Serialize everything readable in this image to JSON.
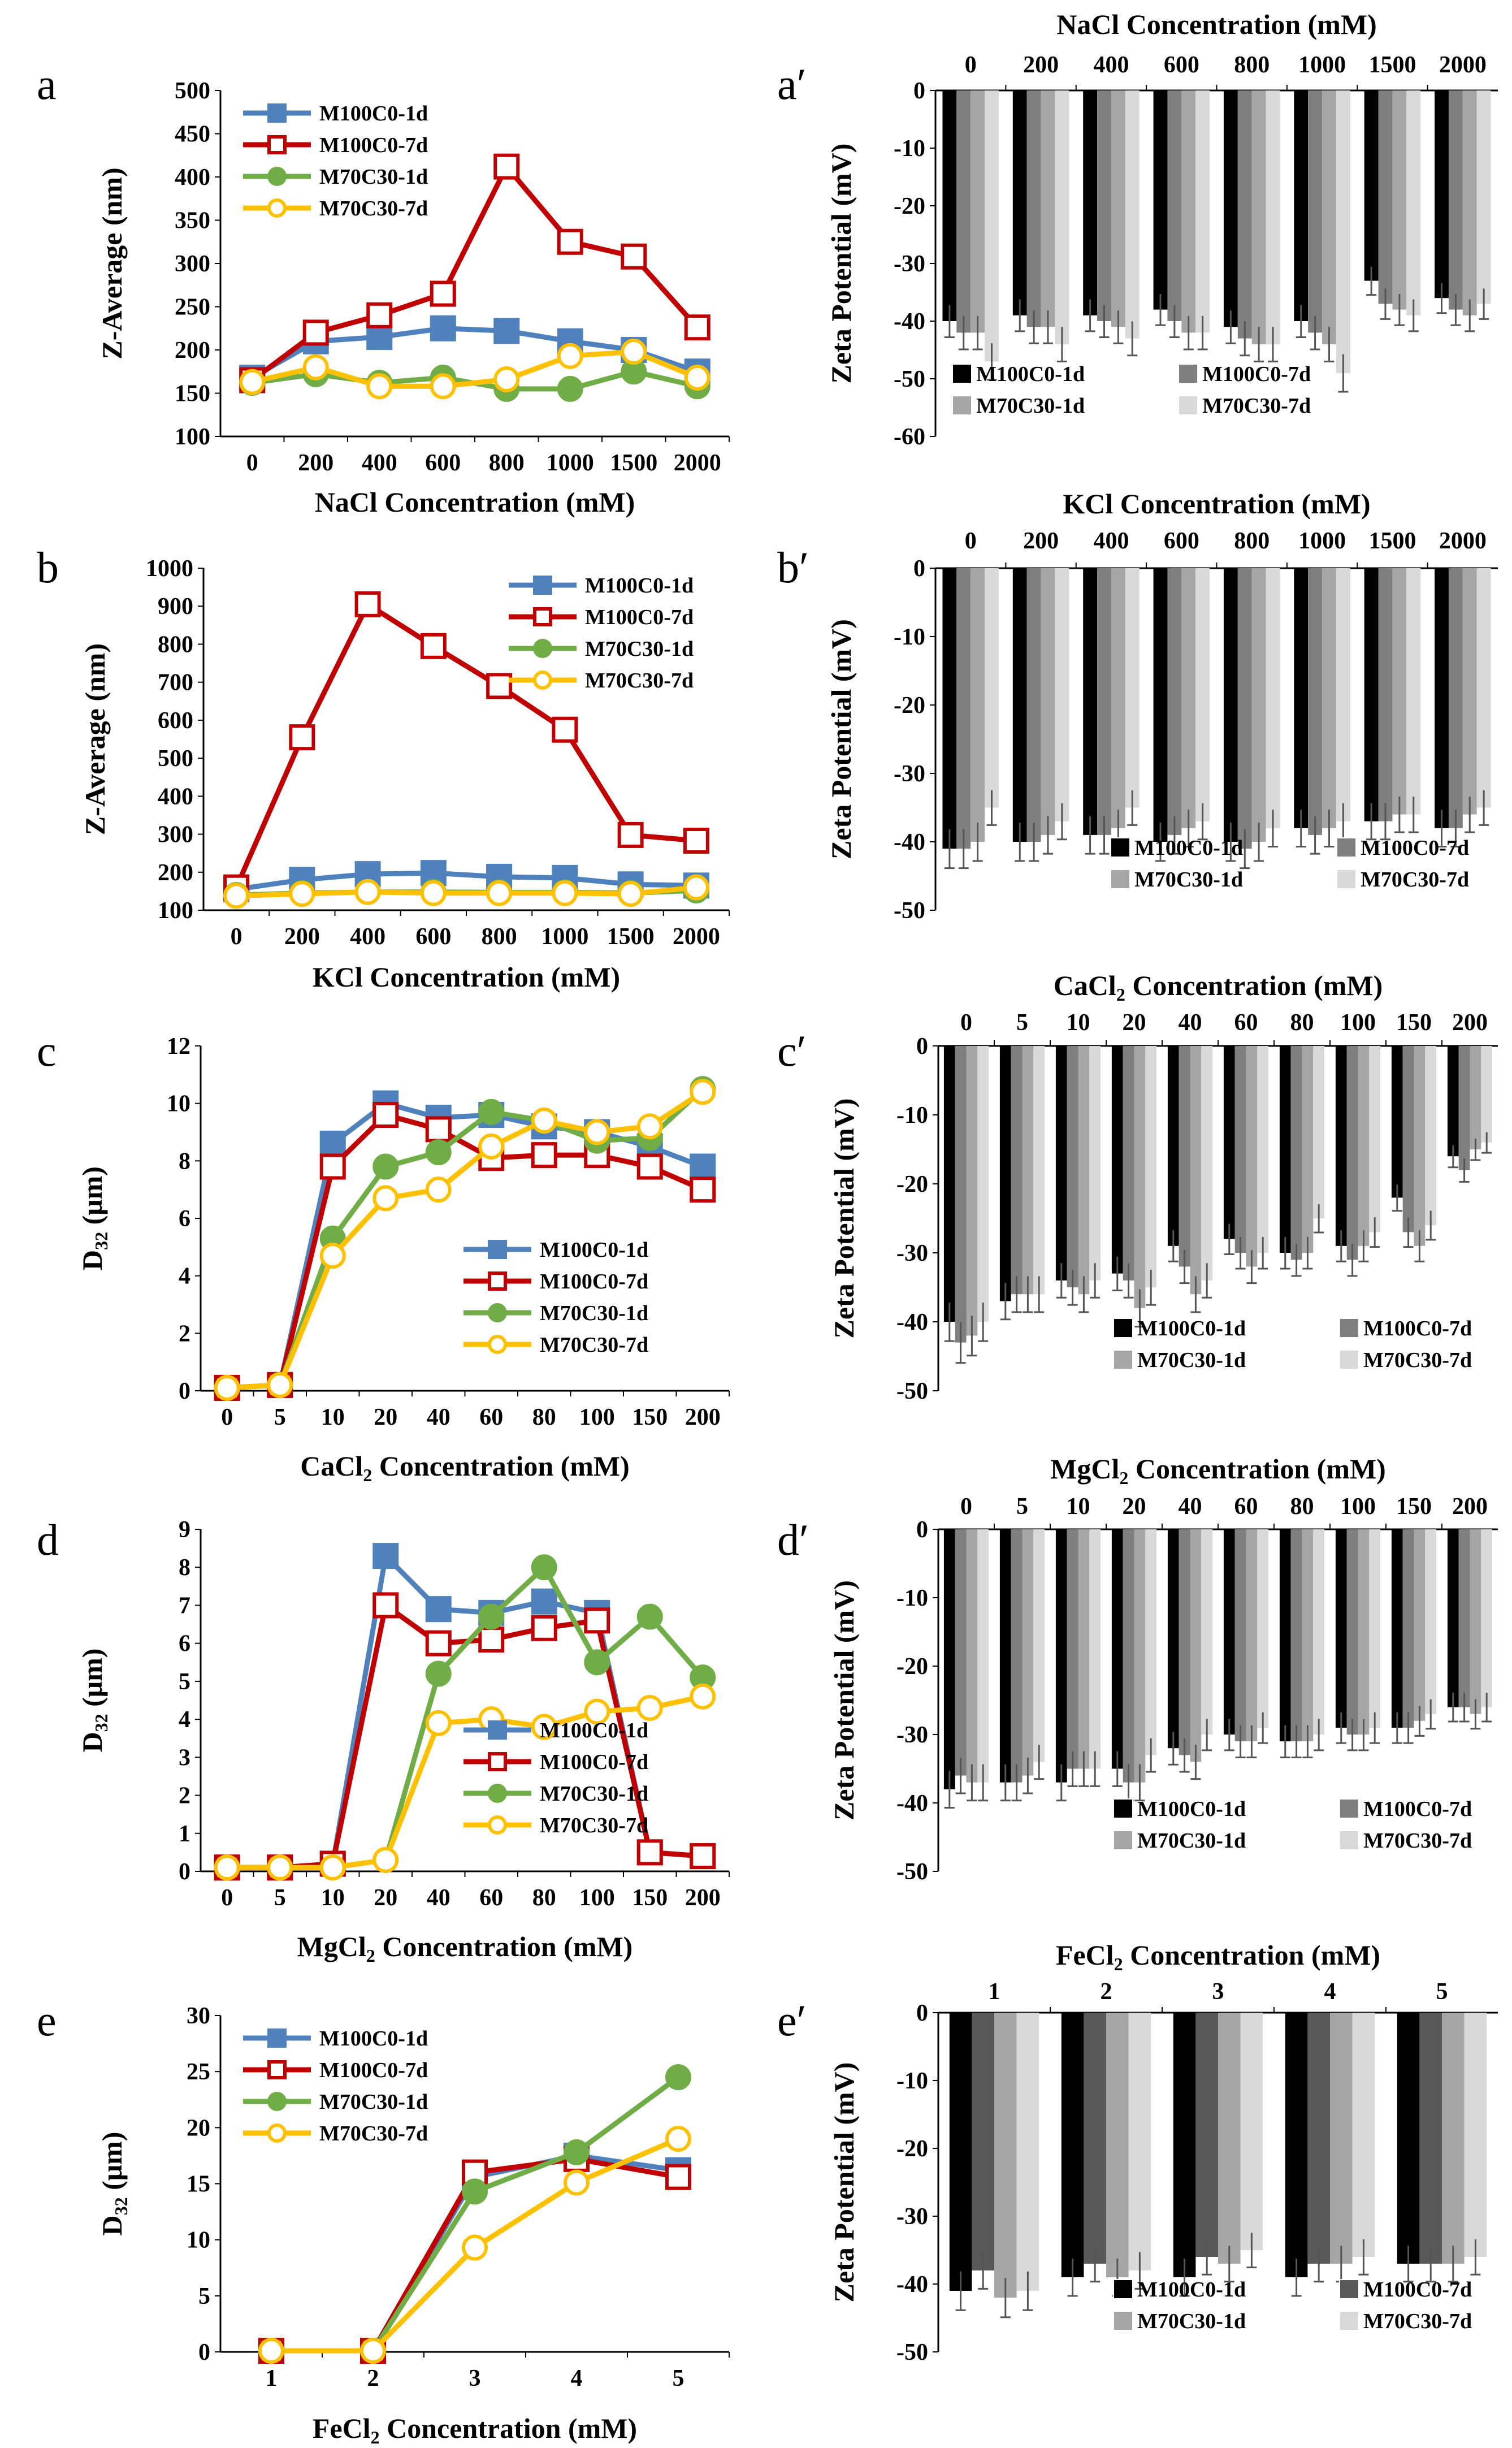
{
  "figure": {
    "panels": [
      "a",
      "a′",
      "b",
      "b′",
      "c",
      "c′",
      "d",
      "d′",
      "e",
      "e′"
    ]
  },
  "chart_data": [
    {
      "id": "a",
      "type": "line",
      "label": "a",
      "categories": [
        "0",
        "200",
        "400",
        "600",
        "800",
        "1000",
        "1500",
        "2000"
      ],
      "xlabel": "NaCl Concentration (mM)",
      "ylabel": "Z-Average (nm)",
      "ylim": [
        100,
        500
      ],
      "ystep": 50,
      "legend": "top-left",
      "series": [
        {
          "name": "M100C0-1d",
          "color": "#4f81bd",
          "marker": "square",
          "filled": true,
          "values": [
            168,
            210,
            215,
            225,
            222,
            210,
            200,
            175
          ]
        },
        {
          "name": "M100C0-7d",
          "color": "#c00000",
          "marker": "square",
          "filled": false,
          "values": [
            165,
            220,
            240,
            265,
            412,
            325,
            308,
            226
          ]
        },
        {
          "name": "M70C30-1d",
          "color": "#70ad47",
          "marker": "circle",
          "filled": true,
          "values": [
            162,
            172,
            162,
            168,
            155,
            155,
            175,
            158
          ]
        },
        {
          "name": "M70C30-7d",
          "color": "#ffc000",
          "marker": "circle",
          "filled": false,
          "values": [
            163,
            180,
            158,
            158,
            166,
            193,
            198,
            168
          ]
        }
      ]
    },
    {
      "id": "a2",
      "type": "bar",
      "label": "a′",
      "title": "NaCl Concentration (mM)",
      "categories": [
        "0",
        "200",
        "400",
        "600",
        "800",
        "1000",
        "1500",
        "2000"
      ],
      "ylabel": "Zeta Potential (mV)",
      "ylim": [
        -60,
        0
      ],
      "ystep": 10,
      "legend": "bottom-left",
      "series": [
        {
          "name": "M100C0-1d",
          "color": "#000000",
          "values": [
            -40,
            -39,
            -39,
            -38,
            -41,
            -40,
            -33,
            -36
          ]
        },
        {
          "name": "M100C0-7d",
          "color": "#7f7f7f",
          "values": [
            -42,
            -41,
            -40,
            -40,
            -43,
            -42,
            -37,
            -38
          ]
        },
        {
          "name": "M70C30-1d",
          "color": "#a6a6a6",
          "values": [
            -42,
            -41,
            -41,
            -42,
            -44,
            -44,
            -38,
            -39
          ]
        },
        {
          "name": "M70C30-7d",
          "color": "#d9d9d9",
          "values": [
            -47,
            -44,
            -43,
            -42,
            -44,
            -49,
            -39,
            -37
          ]
        }
      ]
    },
    {
      "id": "b",
      "type": "line",
      "label": "b",
      "categories": [
        "0",
        "200",
        "400",
        "600",
        "800",
        "1000",
        "1500",
        "2000"
      ],
      "xlabel": "KCl Concentration (mM)",
      "ylabel": "Z-Average (nm)",
      "ylim": [
        100,
        1000
      ],
      "ystep": 100,
      "legend": "top-right",
      "series": [
        {
          "name": "M100C0-1d",
          "color": "#4f81bd",
          "marker": "square",
          "filled": true,
          "values": [
            155,
            180,
            195,
            198,
            188,
            185,
            168,
            165
          ]
        },
        {
          "name": "M100C0-7d",
          "color": "#c00000",
          "marker": "square",
          "filled": false,
          "values": [
            160,
            555,
            905,
            795,
            690,
            575,
            298,
            283
          ]
        },
        {
          "name": "M70C30-1d",
          "color": "#70ad47",
          "marker": "circle",
          "filled": true,
          "values": [
            140,
            145,
            148,
            148,
            147,
            147,
            145,
            152
          ]
        },
        {
          "name": "M70C30-7d",
          "color": "#ffc000",
          "marker": "circle",
          "filled": false,
          "values": [
            138,
            143,
            148,
            145,
            145,
            145,
            143,
            160
          ]
        }
      ]
    },
    {
      "id": "b2",
      "type": "bar",
      "label": "b′",
      "title": "KCl Concentration (mM)",
      "categories": [
        "0",
        "200",
        "400",
        "600",
        "800",
        "1000",
        "1500",
        "2000"
      ],
      "ylabel": "Zeta Potential (mV)",
      "ylim": [
        -50,
        0
      ],
      "ystep": 10,
      "legend": "bottom-right",
      "series": [
        {
          "name": "M100C0-1d",
          "color": "#000000",
          "values": [
            -41,
            -40,
            -39,
            -40,
            -40,
            -38,
            -37,
            -38
          ]
        },
        {
          "name": "M100C0-7d",
          "color": "#7f7f7f",
          "values": [
            -41,
            -40,
            -39,
            -39,
            -41,
            -39,
            -37,
            -38
          ]
        },
        {
          "name": "M70C30-1d",
          "color": "#a6a6a6",
          "values": [
            -40,
            -39,
            -38,
            -38,
            -40,
            -38,
            -36,
            -36
          ]
        },
        {
          "name": "M70C30-7d",
          "color": "#d9d9d9",
          "values": [
            -35,
            -37,
            -35,
            -37,
            -38,
            -37,
            -36,
            -35
          ]
        }
      ]
    },
    {
      "id": "c",
      "type": "line",
      "label": "c",
      "categories": [
        "0",
        "5",
        "10",
        "20",
        "40",
        "60",
        "80",
        "100",
        "150",
        "200"
      ],
      "xlabel": "CaCl",
      "xlabel_sub": "2",
      "xlabel_rest": " Concentration (mM)",
      "ylabel": "D",
      "ylabel_sub": "32",
      "ylabel_rest": " (μm)",
      "ylim": [
        0,
        12
      ],
      "ystep": 2,
      "legend": "bottom-right",
      "series": [
        {
          "name": "M100C0-1d",
          "color": "#4f81bd",
          "marker": "square",
          "filled": true,
          "values": [
            0.1,
            0.2,
            8.6,
            10.0,
            9.5,
            9.6,
            9.2,
            9.0,
            8.5,
            7.8
          ]
        },
        {
          "name": "M100C0-7d",
          "color": "#c00000",
          "marker": "square",
          "filled": false,
          "values": [
            0.1,
            0.2,
            7.8,
            9.6,
            9.1,
            8.1,
            8.2,
            8.2,
            7.8,
            7.0
          ]
        },
        {
          "name": "M70C30-1d",
          "color": "#70ad47",
          "marker": "circle",
          "filled": true,
          "values": [
            0.1,
            0.2,
            5.3,
            7.8,
            8.3,
            9.7,
            9.4,
            8.7,
            8.8,
            10.5
          ]
        },
        {
          "name": "M70C30-7d",
          "color": "#ffc000",
          "marker": "circle",
          "filled": false,
          "values": [
            0.1,
            0.2,
            4.7,
            6.7,
            7.0,
            8.5,
            9.4,
            9.0,
            9.2,
            10.4
          ]
        }
      ]
    },
    {
      "id": "c2",
      "type": "bar",
      "label": "c′",
      "title": "CaCl",
      "title_sub": "2",
      "title_rest": " Concentration (mM)",
      "categories": [
        "0",
        "5",
        "10",
        "20",
        "40",
        "60",
        "80",
        "100",
        "150",
        "200"
      ],
      "ylabel": "Zeta Potential (mV)",
      "ylim": [
        -50,
        0
      ],
      "ystep": 10,
      "legend": "bottom-right",
      "series": [
        {
          "name": "M100C0-1d",
          "color": "#000000",
          "values": [
            -40,
            -37,
            -34,
            -33,
            -29,
            -28,
            -30,
            -29,
            -22,
            -16
          ]
        },
        {
          "name": "M100C0-7d",
          "color": "#7f7f7f",
          "values": [
            -43,
            -36,
            -35,
            -34,
            -32,
            -30,
            -31,
            -31,
            -27,
            -18
          ]
        },
        {
          "name": "M70C30-1d",
          "color": "#a6a6a6",
          "values": [
            -42,
            -36,
            -36,
            -38,
            -36,
            -32,
            -30,
            -29,
            -29,
            -15
          ]
        },
        {
          "name": "M70C30-7d",
          "color": "#d9d9d9",
          "values": [
            -40,
            -36,
            -34,
            -35,
            -34,
            -30,
            -25,
            -27,
            -26,
            -14
          ]
        }
      ]
    },
    {
      "id": "d",
      "type": "line",
      "label": "d",
      "categories": [
        "0",
        "5",
        "10",
        "20",
        "40",
        "60",
        "80",
        "100",
        "150",
        "200"
      ],
      "xlabel": "MgCl",
      "xlabel_sub": "2",
      "xlabel_rest": " Concentration (mM)",
      "ylabel": "D",
      "ylabel_sub": "32",
      "ylabel_rest": " (μm)",
      "ylim": [
        0,
        9
      ],
      "ystep": 1,
      "legend": "bottom-right",
      "series": [
        {
          "name": "M100C0-1d",
          "color": "#4f81bd",
          "marker": "square",
          "filled": true,
          "values": [
            0.1,
            0.1,
            0.2,
            8.3,
            6.9,
            6.8,
            7.1,
            6.8,
            0.5,
            0.4
          ]
        },
        {
          "name": "M100C0-7d",
          "color": "#c00000",
          "marker": "square",
          "filled": false,
          "values": [
            0.1,
            0.1,
            0.2,
            7.0,
            6.0,
            6.1,
            6.4,
            6.6,
            0.5,
            0.4
          ]
        },
        {
          "name": "M70C30-1d",
          "color": "#70ad47",
          "marker": "circle",
          "filled": true,
          "values": [
            0.1,
            0.1,
            0.1,
            0.3,
            5.2,
            6.7,
            8.0,
            5.5,
            6.7,
            5.1
          ]
        },
        {
          "name": "M70C30-7d",
          "color": "#ffc000",
          "marker": "circle",
          "filled": false,
          "values": [
            0.1,
            0.1,
            0.1,
            0.3,
            3.9,
            4.0,
            3.8,
            4.2,
            4.3,
            4.6
          ]
        }
      ]
    },
    {
      "id": "d2",
      "type": "bar",
      "label": "d′",
      "title": "MgCl",
      "title_sub": "2",
      "title_rest": " Concentration (mM)",
      "categories": [
        "0",
        "5",
        "10",
        "20",
        "40",
        "60",
        "80",
        "100",
        "150",
        "200"
      ],
      "ylabel": "Zeta Potential (mV)",
      "ylim": [
        -50,
        0
      ],
      "ystep": 10,
      "legend": "bottom-right",
      "series": [
        {
          "name": "M100C0-1d",
          "color": "#000000",
          "values": [
            -38,
            -37,
            -37,
            -35,
            -32,
            -30,
            -31,
            -29,
            -29,
            -26
          ]
        },
        {
          "name": "M100C0-7d",
          "color": "#7f7f7f",
          "values": [
            -36,
            -37,
            -35,
            -37,
            -33,
            -31,
            -31,
            -30,
            -29,
            -26
          ]
        },
        {
          "name": "M70C30-1d",
          "color": "#a6a6a6",
          "values": [
            -37,
            -36,
            -35,
            -37,
            -34,
            -31,
            -31,
            -30,
            -28,
            -27
          ]
        },
        {
          "name": "M70C30-7d",
          "color": "#d9d9d9",
          "values": [
            -37,
            -34,
            -35,
            -33,
            -30,
            -29,
            -30,
            -29,
            -27,
            -26
          ]
        }
      ]
    },
    {
      "id": "e",
      "type": "line",
      "label": "e",
      "categories": [
        "1",
        "2",
        "3",
        "4",
        "5"
      ],
      "xlabel": "FeCl",
      "xlabel_sub": "2",
      "xlabel_rest": " Concentration (mM)",
      "ylabel": "D",
      "ylabel_sub": "32",
      "ylabel_rest": " (μm)",
      "ylim": [
        0,
        30
      ],
      "ystep": 5,
      "legend": "top-left",
      "series": [
        {
          "name": "M100C0-1d",
          "color": "#4f81bd",
          "marker": "square",
          "filled": true,
          "values": [
            0.1,
            0.1,
            15.6,
            17.5,
            16.2
          ]
        },
        {
          "name": "M100C0-7d",
          "color": "#c00000",
          "marker": "square",
          "filled": false,
          "values": [
            0.1,
            0.1,
            16.0,
            17.2,
            15.6
          ]
        },
        {
          "name": "M70C30-1d",
          "color": "#70ad47",
          "marker": "circle",
          "filled": true,
          "values": [
            0.1,
            0.1,
            14.3,
            17.8,
            24.5
          ]
        },
        {
          "name": "M70C30-7d",
          "color": "#ffc000",
          "marker": "circle",
          "filled": false,
          "values": [
            0.1,
            0.1,
            9.3,
            15.1,
            19.0
          ]
        }
      ]
    },
    {
      "id": "e2",
      "type": "bar",
      "label": "e′",
      "title": "FeCl",
      "title_sub": "2",
      "title_rest": " Concentration (mM)",
      "categories": [
        "1",
        "2",
        "3",
        "4",
        "5"
      ],
      "ylabel": "Zeta Potential (mV)",
      "ylim": [
        -50,
        0
      ],
      "ystep": 10,
      "legend": "bottom-right",
      "series": [
        {
          "name": "M100C0-1d",
          "color": "#000000",
          "values": [
            -41,
            -39,
            -39,
            -39,
            -37
          ]
        },
        {
          "name": "M100C0-7d",
          "color": "#595959",
          "values": [
            -38,
            -37,
            -36,
            -37,
            -37
          ]
        },
        {
          "name": "M70C30-1d",
          "color": "#a6a6a6",
          "values": [
            -42,
            -39,
            -37,
            -37,
            -37
          ]
        },
        {
          "name": "M70C30-7d",
          "color": "#d9d9d9",
          "values": [
            -41,
            -38,
            -35,
            -36,
            -36
          ]
        }
      ]
    }
  ]
}
